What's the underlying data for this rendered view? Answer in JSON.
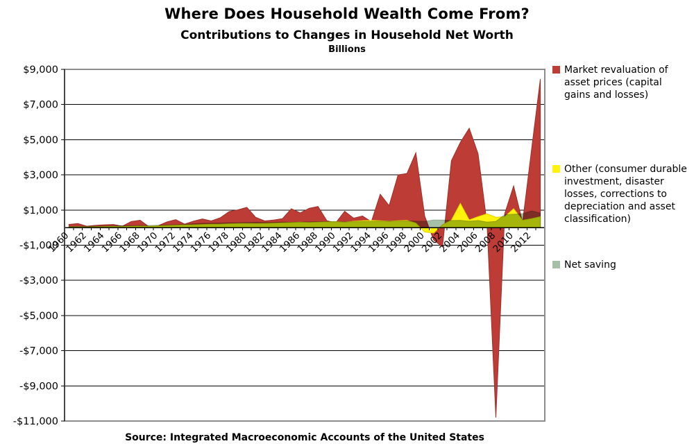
{
  "header": {
    "title": "Where Does Household Wealth Come From?",
    "subtitle": "Contributions to Changes in Household Net Worth",
    "units_label": "Billions"
  },
  "source_text": "Source: Integrated Macroeconomic Accounts of the United States",
  "legend": [
    {
      "label": "Market revaluation of asset prices (capital gains and losses)",
      "color": "#BE3C36"
    },
    {
      "label": "Other (consumer durable investment, disaster losses, corrections to depreciation and asset classification)",
      "color": "#FFF20D"
    },
    {
      "label": "Net saving",
      "color": "#A6BFA7"
    }
  ],
  "chart_data": {
    "type": "area",
    "title": "Where Does Household Wealth Come From?",
    "subtitle": "Contributions to Changes in Household Net Worth",
    "ylabel": "Billions",
    "x": [
      1960,
      1961,
      1962,
      1963,
      1964,
      1965,
      1966,
      1967,
      1968,
      1969,
      1970,
      1971,
      1972,
      1973,
      1974,
      1975,
      1976,
      1977,
      1978,
      1979,
      1980,
      1981,
      1982,
      1983,
      1984,
      1985,
      1986,
      1987,
      1988,
      1989,
      1990,
      1991,
      1992,
      1993,
      1994,
      1995,
      1996,
      1997,
      1998,
      1999,
      2000,
      2001,
      2002,
      2003,
      2004,
      2005,
      2006,
      2007,
      2008,
      2009,
      2010,
      2011,
      2012,
      2013
    ],
    "series": [
      {
        "name": "Market revaluation of asset prices (capital gains and losses)",
        "color": "#BE3C36",
        "stroke": "#9E2F2B",
        "blend": "normal",
        "values": [
          180,
          230,
          80,
          130,
          160,
          180,
          80,
          350,
          420,
          50,
          100,
          320,
          450,
          200,
          370,
          490,
          380,
          560,
          910,
          1010,
          1150,
          580,
          380,
          430,
          510,
          1070,
          840,
          1100,
          1200,
          390,
          280,
          930,
          540,
          660,
          340,
          1900,
          1250,
          3000,
          3080,
          4260,
          650,
          -700,
          -1100,
          3800,
          4850,
          5650,
          4200,
          240,
          -10800,
          800,
          2370,
          300,
          4400,
          8450
        ]
      },
      {
        "name": "Other (consumer durable investment, disaster losses, corrections to depreciation and asset classification)",
        "color": "#FFF20D",
        "stroke": "#E3D400",
        "blend": "normal",
        "values": [
          40,
          50,
          40,
          50,
          60,
          70,
          60,
          80,
          90,
          80,
          100,
          120,
          140,
          150,
          160,
          180,
          190,
          200,
          220,
          230,
          240,
          230,
          240,
          250,
          270,
          290,
          310,
          290,
          310,
          330,
          340,
          310,
          360,
          390,
          410,
          390,
          360,
          390,
          410,
          260,
          -250,
          -310,
          160,
          420,
          1380,
          440,
          620,
          790,
          590,
          620,
          1080,
          420,
          510,
          620
        ]
      },
      {
        "name": "Net saving",
        "color": "#A6BFA7",
        "stroke": "#8FA890",
        "blend": "multiply",
        "values": [
          60,
          65,
          70,
          75,
          85,
          95,
          105,
          110,
          115,
          120,
          130,
          145,
          160,
          180,
          220,
          240,
          250,
          260,
          270,
          280,
          290,
          300,
          290,
          290,
          310,
          300,
          310,
          320,
          330,
          340,
          330,
          320,
          330,
          340,
          350,
          360,
          350,
          360,
          370,
          360,
          350,
          430,
          430,
          400,
          410,
          360,
          400,
          310,
          350,
          730,
          760,
          790,
          950,
          830
        ]
      }
    ],
    "ylim": [
      -11000,
      9000
    ],
    "ytick_step": 2000,
    "ytick_labels": [
      "$9,000",
      "$7,000",
      "$5,000",
      "$3,000",
      "$1,000",
      "-$1,000",
      "-$3,000",
      "-$5,000",
      "-$7,000",
      "-$9,000",
      "-$11,000"
    ],
    "xtick_labels": [
      "1960",
      "1962",
      "1964",
      "1966",
      "1968",
      "1970",
      "1972",
      "1974",
      "1976",
      "1978",
      "1980",
      "1982",
      "1984",
      "1986",
      "1988",
      "1990",
      "1992",
      "1994",
      "1996",
      "1998",
      "2000",
      "2002",
      "2004",
      "2006",
      "2008",
      "2010",
      "2012"
    ],
    "grid": true,
    "legend_position": "right",
    "axis_color": "#000000",
    "border_color": "#8C8C8C"
  }
}
